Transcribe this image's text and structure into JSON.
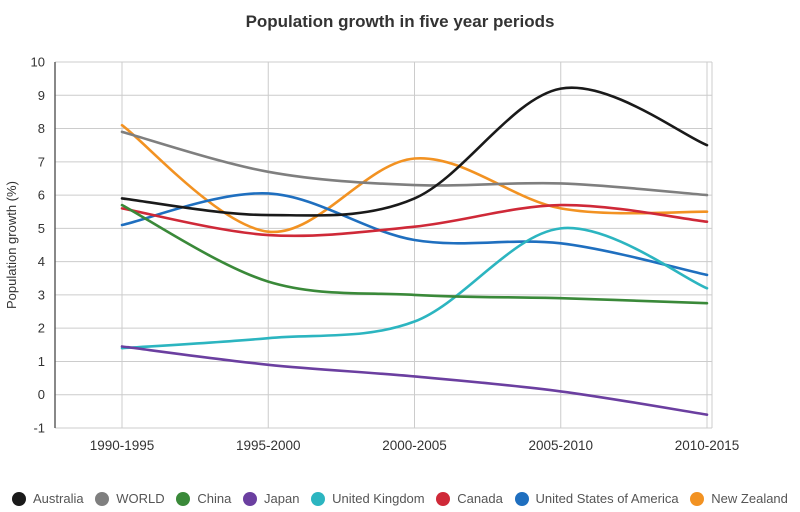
{
  "chart_data": {
    "type": "line",
    "title": "Population growth in five year periods",
    "xlabel": "",
    "ylabel": "Population growth (%)",
    "categories": [
      "1990-1995",
      "1995-2000",
      "2000-2005",
      "2005-2010",
      "2010-2015"
    ],
    "ylim": [
      -1,
      10
    ],
    "ytick_step": 1,
    "grid": true,
    "legend_position": "bottom",
    "line_style": "smooth",
    "grid_color": "#cccccc",
    "axis_color": "#555555",
    "tick_label_color": "#333333",
    "series": [
      {
        "name": "Australia",
        "color": "#1a1a1a",
        "values": [
          5.9,
          5.4,
          5.9,
          9.2,
          7.5
        ]
      },
      {
        "name": "WORLD",
        "color": "#7f7f7f",
        "values": [
          7.9,
          6.7,
          6.3,
          6.35,
          6.0
        ]
      },
      {
        "name": "China",
        "color": "#3a8939",
        "values": [
          5.7,
          3.4,
          3.0,
          2.9,
          2.75
        ]
      },
      {
        "name": "Japan",
        "color": "#6b3fa0",
        "values": [
          1.45,
          0.9,
          0.55,
          0.1,
          -0.6
        ]
      },
      {
        "name": "United Kingdom",
        "color": "#2cb5c0",
        "values": [
          1.4,
          1.7,
          2.2,
          5.0,
          3.2
        ]
      },
      {
        "name": "Canada",
        "color": "#cf2938",
        "values": [
          5.6,
          4.8,
          5.05,
          5.7,
          5.2
        ]
      },
      {
        "name": "United States of America",
        "color": "#1f6fbf",
        "values": [
          5.1,
          6.05,
          4.65,
          4.55,
          3.6
        ]
      },
      {
        "name": "New Zealand",
        "color": "#f29222",
        "values": [
          8.1,
          4.9,
          7.1,
          5.6,
          5.5
        ]
      }
    ]
  }
}
